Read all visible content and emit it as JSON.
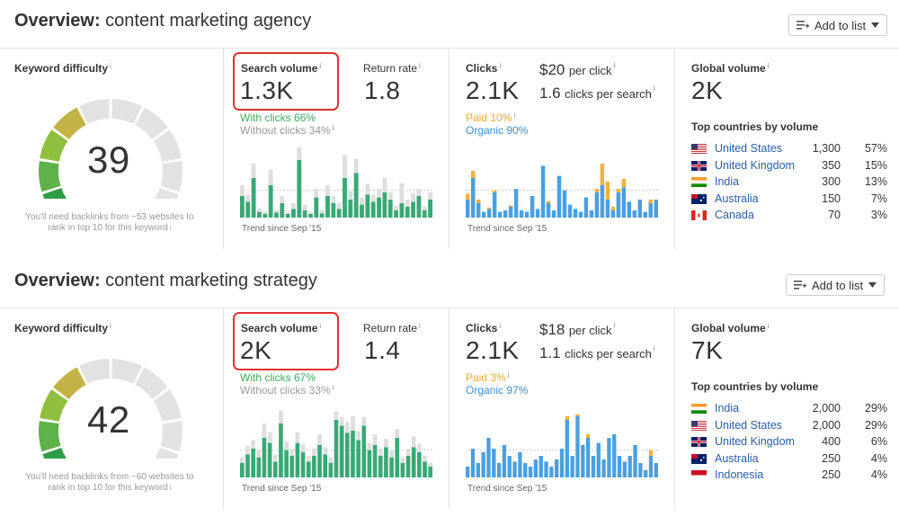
{
  "overviews": [
    {
      "title_prefix": "Overview:",
      "keyword": "content marketing agency",
      "add_to_list": "Add to list",
      "kd": {
        "label": "Keyword difficulty",
        "value": "39",
        "score": 39,
        "hint_line1": "You'll need backlinks from ~53 websites to",
        "hint_line2": "rank in top 10 for this keyword",
        "colors": [
          "#2e9d46",
          "#5fb14a",
          "#8fbf3f",
          "#c3b346"
        ]
      },
      "search_volume": {
        "label": "Search volume",
        "value": "1.3K",
        "with_clicks": "With clicks 66%",
        "without_clicks": "Without clicks 34%",
        "trend": "Trend since Sep '15"
      },
      "return_rate": {
        "label": "Return rate",
        "value": "1.8"
      },
      "clicks": {
        "label": "Clicks",
        "value": "2.1K",
        "price": "$20",
        "price_label": "per click",
        "cps": "1.6",
        "cps_label": "clicks per search",
        "paid": "Paid 10%",
        "organic": "Organic 90%",
        "trend": "Trend since Sep '15"
      },
      "global": {
        "label": "Global volume",
        "value": "2K",
        "top_label": "Top countries by volume",
        "countries": [
          {
            "name": "United States",
            "volume": "1,300",
            "pct": "57%",
            "flag": "us"
          },
          {
            "name": "United Kingdom",
            "volume": "350",
            "pct": "15%",
            "flag": "uk"
          },
          {
            "name": "India",
            "volume": "300",
            "pct": "13%",
            "flag": "in"
          },
          {
            "name": "Australia",
            "volume": "150",
            "pct": "7%",
            "flag": "au"
          },
          {
            "name": "Canada",
            "volume": "70",
            "pct": "3%",
            "flag": "ca"
          }
        ]
      },
      "sv_chart": {
        "with": [
          0.3,
          0.22,
          0.55,
          0.08,
          0.05,
          0.45,
          0.07,
          0.2,
          0.05,
          0.12,
          0.8,
          0.1,
          0.05,
          0.28,
          0.06,
          0.3,
          0.2,
          0.12,
          0.55,
          0.25,
          0.62,
          0.18,
          0.32,
          0.22,
          0.28,
          0.35,
          0.25,
          0.1,
          0.2,
          0.15,
          0.22,
          0.3,
          0.1,
          0.25
        ],
        "without": [
          0.15,
          0.1,
          0.2,
          0.05,
          0.04,
          0.22,
          0.04,
          0.1,
          0.03,
          0.08,
          0.18,
          0.08,
          0.03,
          0.12,
          0.05,
          0.15,
          0.1,
          0.08,
          0.32,
          0.12,
          0.2,
          0.1,
          0.15,
          0.1,
          0.12,
          0.2,
          0.1,
          0.06,
          0.28,
          0.1,
          0.12,
          0.1,
          0.05,
          0.1
        ]
      },
      "clicks_chart": {
        "organic": [
          0.25,
          0.55,
          0.2,
          0.08,
          0.12,
          0.35,
          0.08,
          0.1,
          0.15,
          0.4,
          0.1,
          0.08,
          0.3,
          0.12,
          0.72,
          0.2,
          0.1,
          0.58,
          0.38,
          0.18,
          0.12,
          0.08,
          0.28,
          0.1,
          0.35,
          0.45,
          0.25,
          0.1,
          0.35,
          0.42,
          0.22,
          0.1,
          0.25,
          0.08,
          0.2,
          0.25
        ],
        "paid": [
          0.08,
          0.1,
          0.05,
          0,
          0.02,
          0.03,
          0,
          0,
          0.02,
          0,
          0,
          0,
          0,
          0,
          0,
          0.03,
          0,
          0,
          0,
          0,
          0,
          0,
          0,
          0,
          0.05,
          0.3,
          0.25,
          0.05,
          0.05,
          0.12,
          0,
          0,
          0,
          0,
          0.05,
          0
        ]
      }
    },
    {
      "title_prefix": "Overview:",
      "keyword": "content marketing strategy",
      "add_to_list": "Add to list",
      "kd": {
        "label": "Keyword difficulty",
        "value": "42",
        "score": 42,
        "hint_line1": "You'll need backlinks from ~60 websites to",
        "hint_line2": "rank in top 10 for this keyword",
        "colors": [
          "#2e9d46",
          "#5fb14a",
          "#8fbf3f",
          "#c3b346"
        ]
      },
      "search_volume": {
        "label": "Search volume",
        "value": "2K",
        "with_clicks": "With clicks 67%",
        "without_clicks": "Without clicks 33%",
        "trend": "Trend since Sep '15"
      },
      "return_rate": {
        "label": "Return rate",
        "value": "1.4"
      },
      "clicks": {
        "label": "Clicks",
        "value": "2.1K",
        "price": "$18",
        "price_label": "per click",
        "cps": "1.1",
        "cps_label": "clicks per search",
        "paid": "Paid 3%",
        "organic": "Organic 97%",
        "trend": "Trend since Sep '15"
      },
      "global": {
        "label": "Global volume",
        "value": "7K",
        "top_label": "Top countries by volume",
        "countries": [
          {
            "name": "India",
            "volume": "2,000",
            "pct": "29%",
            "flag": "in"
          },
          {
            "name": "United States",
            "volume": "2,000",
            "pct": "29%",
            "flag": "us"
          },
          {
            "name": "United Kingdom",
            "volume": "400",
            "pct": "6%",
            "flag": "uk"
          },
          {
            "name": "Australia",
            "volume": "250",
            "pct": "4%",
            "flag": "au"
          },
          {
            "name": "Indonesia",
            "volume": "250",
            "pct": "4%",
            "flag": "id"
          }
        ]
      },
      "sv_chart": {
        "with": [
          0.2,
          0.32,
          0.4,
          0.28,
          0.55,
          0.48,
          0.22,
          0.75,
          0.38,
          0.3,
          0.48,
          0.35,
          0.22,
          0.3,
          0.45,
          0.32,
          0.2,
          0.8,
          0.72,
          0.62,
          0.65,
          0.52,
          0.72,
          0.38,
          0.45,
          0.3,
          0.42,
          0.28,
          0.55,
          0.2,
          0.3,
          0.42,
          0.35,
          0.22,
          0.15
        ],
        "without": [
          0.08,
          0.12,
          0.12,
          0.1,
          0.2,
          0.15,
          0.1,
          0.18,
          0.12,
          0.1,
          0.15,
          0.12,
          0.08,
          0.1,
          0.15,
          0.1,
          0.08,
          0.12,
          0.12,
          0.15,
          0.2,
          0.12,
          0.12,
          0.1,
          0.15,
          0.1,
          0.12,
          0.1,
          0.12,
          0.08,
          0.1,
          0.15,
          0.12,
          0.08,
          0.05
        ]
      },
      "clicks_chart": {
        "organic": [
          0.15,
          0.4,
          0.2,
          0.35,
          0.55,
          0.4,
          0.2,
          0.45,
          0.3,
          0.22,
          0.35,
          0.2,
          0.15,
          0.25,
          0.3,
          0.22,
          0.15,
          0.25,
          0.4,
          0.8,
          0.3,
          0.85,
          0.45,
          0.55,
          0.3,
          0.48,
          0.25,
          0.55,
          0.6,
          0.3,
          0.22,
          0.3,
          0.45,
          0.2,
          0.1,
          0.3,
          0.2
        ],
        "paid": [
          0,
          0,
          0,
          0,
          0,
          0,
          0,
          0,
          0,
          0,
          0,
          0,
          0,
          0,
          0,
          0,
          0,
          0,
          0,
          0.05,
          0,
          0.03,
          0,
          0.05,
          0,
          0,
          0,
          0,
          0,
          0,
          0,
          0,
          0,
          0,
          0,
          0.08,
          0
        ]
      }
    }
  ],
  "colors": {
    "gauge_empty": "#e2e2e2",
    "with_clicks": "#3aa876",
    "without_clicks": "#dedede",
    "organic": "#4a9fe0",
    "paid": "#f0b23c",
    "highlight": "#e0322f",
    "link": "#2a5da8"
  }
}
